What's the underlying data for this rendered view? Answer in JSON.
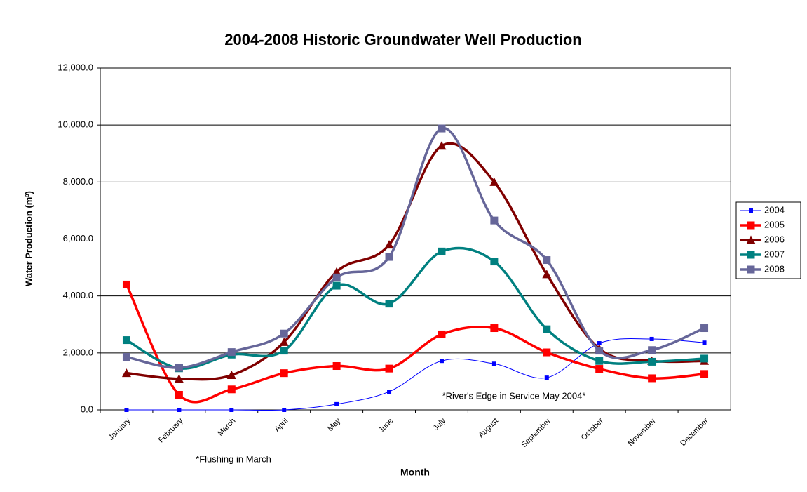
{
  "chart_data": {
    "type": "line",
    "title": "2004-2008 Historic Groundwater Well Production",
    "x_label": "Month",
    "y_label": "Water Production (m³)",
    "annotations": [
      "*River's Edge in Service May 2004*",
      "*Flushing in March"
    ],
    "categories": [
      "January",
      "February",
      "March",
      "April",
      "May",
      "June",
      "July",
      "August",
      "September",
      "October",
      "November",
      "December"
    ],
    "ylim": [
      0,
      12000
    ],
    "yticks": [
      {
        "value": 0,
        "label": "0.0"
      },
      {
        "value": 2000,
        "label": "2,000.0"
      },
      {
        "value": 4000,
        "label": "4,000.0"
      },
      {
        "value": 6000,
        "label": "6,000.0"
      },
      {
        "value": 8000,
        "label": "8,000.0"
      },
      {
        "value": 10000,
        "label": "10,000.0"
      },
      {
        "value": 12000,
        "label": "12,000.0"
      }
    ],
    "grid": true,
    "legend": "right",
    "series": [
      {
        "name": "2004",
        "color": "#0000ff",
        "marker": "square",
        "values": [
          0,
          0,
          0,
          0,
          200,
          640,
          1720,
          1620,
          1130,
          2340,
          2490,
          2360
        ]
      },
      {
        "name": "2005",
        "color": "#ff0000",
        "marker": "square",
        "values": [
          4400,
          530,
          720,
          1290,
          1540,
          1450,
          2650,
          2870,
          2020,
          1440,
          1110,
          1260
        ]
      },
      {
        "name": "2006",
        "color": "#800000",
        "marker": "triangle",
        "values": [
          1290,
          1090,
          1220,
          2380,
          4850,
          5800,
          9270,
          8000,
          4760,
          2150,
          1720,
          1720
        ]
      },
      {
        "name": "2007",
        "color": "#008080",
        "marker": "square",
        "values": [
          2450,
          1460,
          1940,
          2080,
          4360,
          3730,
          5560,
          5210,
          2830,
          1720,
          1690,
          1800
        ]
      },
      {
        "name": "2008",
        "color": "#666699",
        "marker": "square",
        "values": [
          1860,
          1480,
          2030,
          2680,
          4650,
          5370,
          9880,
          6650,
          5260,
          2080,
          2100,
          2870
        ]
      }
    ]
  }
}
